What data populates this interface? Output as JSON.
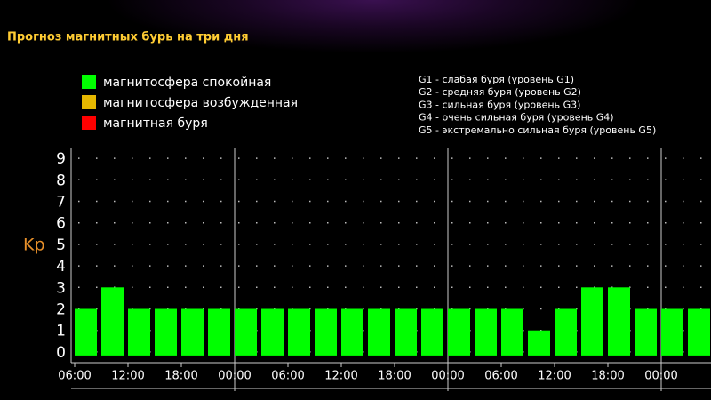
{
  "chart_data": {
    "type": "bar",
    "title": "Прогноз магнитных бурь на три дня",
    "legend": [
      {
        "name": "магнитосфера спокойная",
        "color": "#00ff00"
      },
      {
        "name": "магнитосфера возбужденная",
        "color": "#e6b800"
      },
      {
        "name": "магнитная буря",
        "color": "#ff0000"
      }
    ],
    "scale_notes": [
      "G1 - слабая буря (уровень G1)",
      "G2 - средняя буря (уровень G2)",
      "G3 - сильная буря (уровень G3)",
      "G4 - очень сильная буря (уровень G4)",
      "G5 - экстремально сильная буря (уровень G5)"
    ],
    "y_label": "Kp",
    "x": [
      6,
      9,
      12,
      15,
      18,
      21,
      24,
      27,
      30,
      33,
      36,
      39,
      42,
      45,
      48,
      51,
      54,
      57,
      60,
      63,
      66,
      69,
      72,
      75
    ],
    "values": [
      2,
      3,
      2,
      2,
      2,
      2,
      2,
      2,
      2,
      2,
      2,
      2,
      2,
      2,
      2,
      2,
      2,
      1,
      2,
      3,
      3,
      2,
      2,
      2
    ],
    "bar_span": 2.5,
    "color": "#00ff00",
    "xlim": [
      5.6,
      77.6
    ],
    "ylim": [
      -0.5,
      9.5
    ],
    "yticks": [
      0,
      1,
      2,
      3,
      4,
      5,
      6,
      7,
      8,
      9
    ],
    "xticks": [
      {
        "value": 6,
        "label": "06:00"
      },
      {
        "value": 12,
        "label": "12:00"
      },
      {
        "value": 18,
        "label": "18:00"
      },
      {
        "value": 24,
        "label": "00:00"
      },
      {
        "value": 30,
        "label": "06:00"
      },
      {
        "value": 36,
        "label": "12:00"
      },
      {
        "value": 42,
        "label": "18:00"
      },
      {
        "value": 48,
        "label": "00:00"
      },
      {
        "value": 54,
        "label": "06:00"
      },
      {
        "value": 60,
        "label": "12:00"
      },
      {
        "value": 66,
        "label": "18:00"
      },
      {
        "value": 72,
        "label": "00:00"
      }
    ],
    "day_separators": [
      24,
      48,
      72
    ],
    "grid": true
  }
}
